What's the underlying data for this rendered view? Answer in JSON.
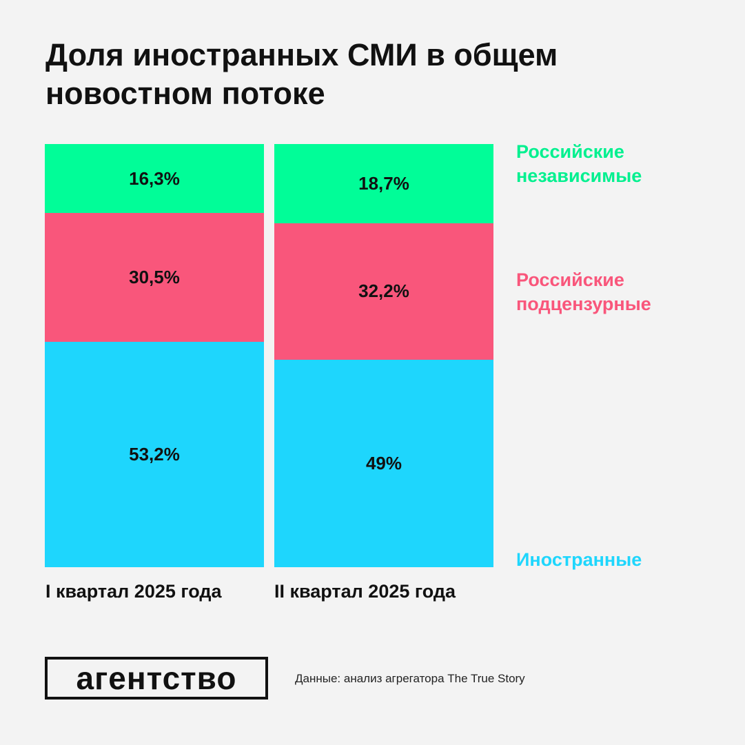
{
  "title_lines": [
    "Доля иностранных СМИ в общем",
    "новостном потоке"
  ],
  "chart_data": {
    "type": "bar",
    "stacked": true,
    "normalized": true,
    "title": "Доля иностранных СМИ в общем новостном потоке",
    "categories": [
      "I квартал 2025 года",
      "II квартал 2025 года"
    ],
    "series": [
      {
        "name": "Иностранные",
        "values": [
          53.2,
          49
        ],
        "labels": [
          "53,2%",
          "49%"
        ],
        "color": "#1ed6fd"
      },
      {
        "name": "Российские подцензурные",
        "values": [
          30.5,
          32.2
        ],
        "labels": [
          "30,5%",
          "32,2%"
        ],
        "color": "#f9567b"
      },
      {
        "name": "Российские независимые",
        "values": [
          16.3,
          18.7
        ],
        "labels": [
          "16,3%",
          "18,7%"
        ],
        "color": "#01fd98"
      }
    ],
    "legend": [
      {
        "lines": [
          "Российские",
          "независимые"
        ],
        "color": "#01f08f"
      },
      {
        "lines": [
          "Российские",
          "подцензурные"
        ],
        "color": "#f9567b"
      },
      {
        "lines": [
          "Иностранные"
        ],
        "color": "#1ed6fd"
      }
    ],
    "legend_position": "right",
    "grid": false
  },
  "logo": {
    "text": "агентство"
  },
  "source": "Данные: анализ агрегатора The True Story"
}
